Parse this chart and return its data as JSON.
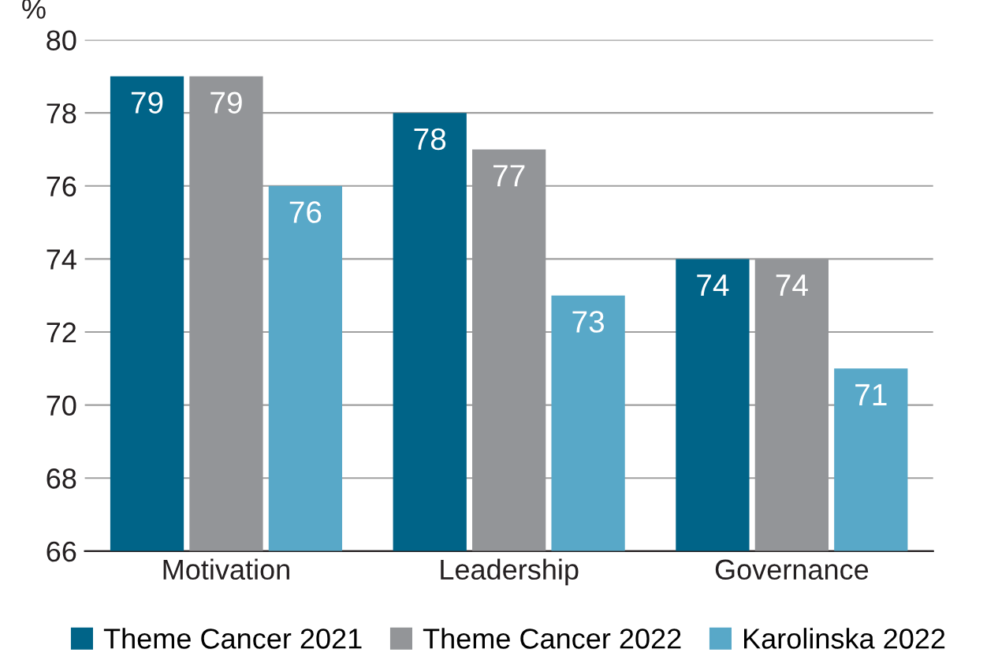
{
  "chart_data": {
    "type": "bar",
    "ylabel": "%",
    "categories": [
      "Motivation",
      "Leadership",
      "Governance"
    ],
    "series": [
      {
        "name": "Theme Cancer 2021",
        "color": "#006488",
        "values": [
          79,
          78,
          74
        ]
      },
      {
        "name": "Theme Cancer 2022",
        "color": "#939598",
        "values": [
          79,
          77,
          74
        ]
      },
      {
        "name": "Karolinska 2022",
        "color": "#58a8c8",
        "values": [
          76,
          73,
          71
        ]
      }
    ],
    "ylim": [
      66,
      80
    ],
    "yticks": [
      66,
      68,
      70,
      72,
      74,
      76,
      78,
      80
    ],
    "grid": "y",
    "legend": "bottom",
    "data_labels": true
  }
}
